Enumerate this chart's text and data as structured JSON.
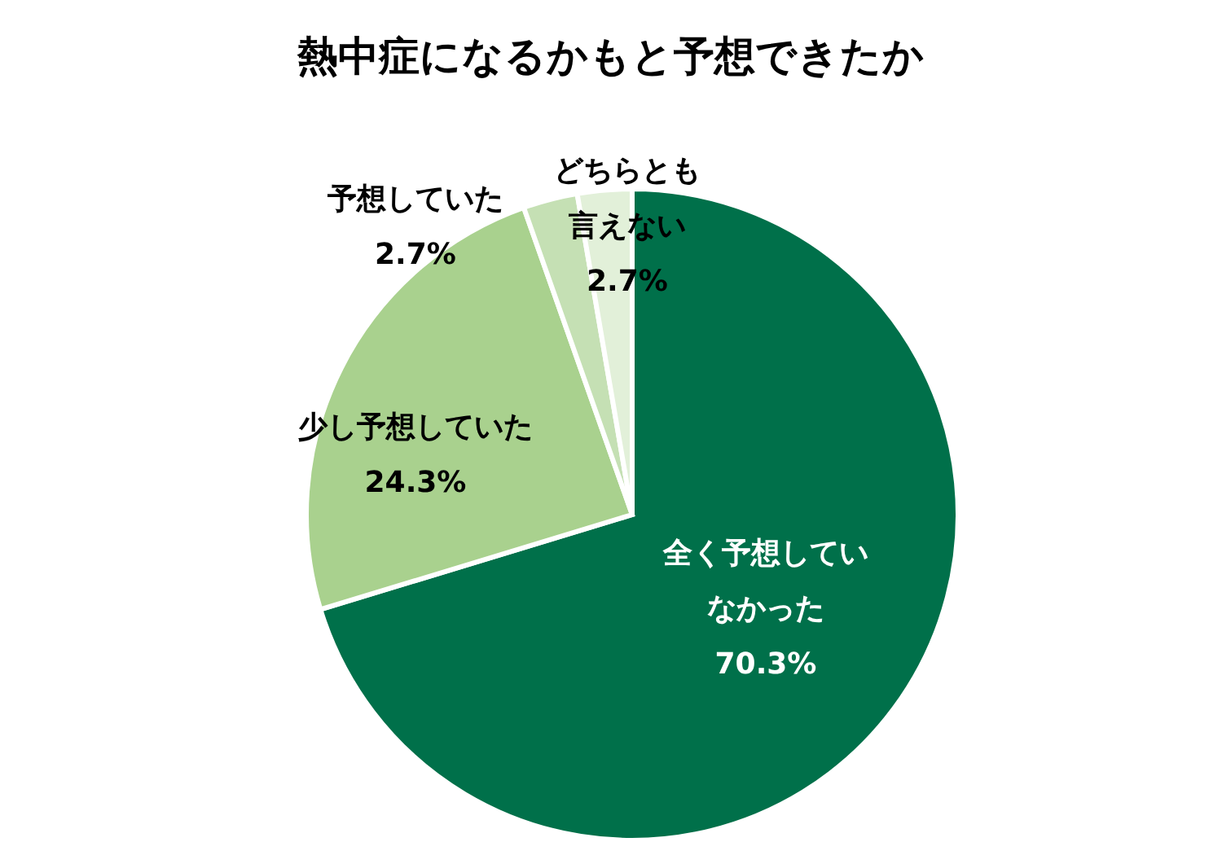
{
  "chart_data": {
    "type": "pie",
    "title": "熱中症になるかもと予想できたか",
    "categories": [
      "全く予想していなかった",
      "少し予想していた",
      "予想していた",
      "どちらとも言えない"
    ],
    "values": [
      70.3,
      24.3,
      2.7,
      2.7
    ],
    "colors": [
      "#00704a",
      "#a9d18e",
      "#c5e0b4",
      "#e2f0d9"
    ],
    "value_labels": [
      "70.3%",
      "24.3%",
      "2.7%",
      "2.7%"
    ],
    "legend": false
  }
}
